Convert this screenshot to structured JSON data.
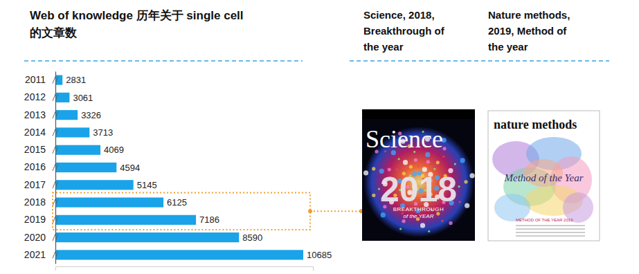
{
  "chart_data": {
    "type": "bar",
    "orientation": "horizontal",
    "title": [
      "Web of knowledge 历年关于 single cell",
      "的文章数"
    ],
    "categories": [
      "2011",
      "2012",
      "2013",
      "2014",
      "2015",
      "2016",
      "2017",
      "2018",
      "2019",
      "2020",
      "2021"
    ],
    "values": [
      2831,
      3061,
      3326,
      3713,
      4069,
      4594,
      5145,
      6125,
      7186,
      8590,
      10685
    ],
    "color": "#1aa3e8",
    "xlim": [
      2600,
      11000
    ],
    "xticks": [],
    "tick_labels": "y",
    "data_labels": true,
    "grid": false
  },
  "panels": [
    {
      "caption": [
        "Science, 2018,",
        "Breakthrough of",
        "the year"
      ],
      "cover_texts": [
        "Science",
        "2018",
        "BREAKTHROUGH",
        "of the YEAR"
      ]
    },
    {
      "caption": [
        "Nature methods,",
        "2019,  Method of",
        "the year"
      ],
      "cover_texts": [
        "nature methods",
        "Method of the Year",
        "METHOD OF THE YEAR 2019"
      ]
    }
  ]
}
